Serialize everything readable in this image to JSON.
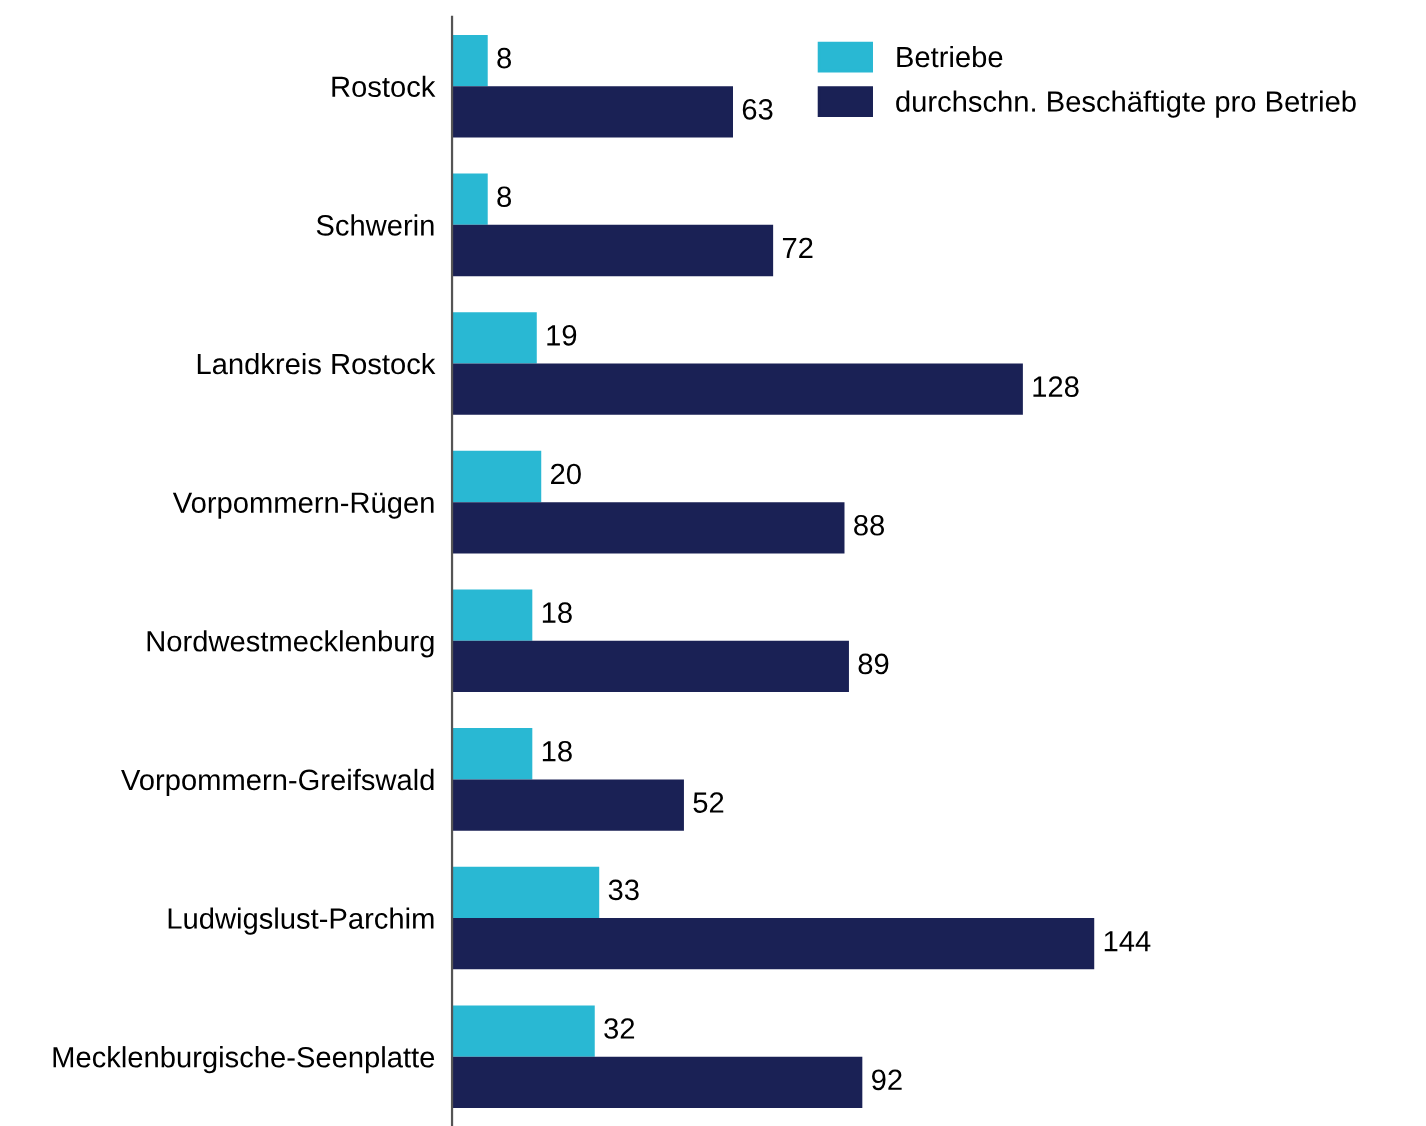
{
  "chart_data": {
    "type": "bar",
    "orientation": "horizontal",
    "data_labels": true,
    "legend": "top right",
    "grid": false,
    "categories": [
      "Rostock",
      "Schwerin",
      "Landkreis Rostock",
      "Vorpommern-Rügen",
      "Nordwestmecklenburg",
      "Vorpommern-Greifswald",
      "Ludwigslust-Parchim",
      "Mecklenburgische-Seenplatte"
    ],
    "series": [
      {
        "name": "Betriebe",
        "color": "#29b8d3",
        "values": [
          8,
          8,
          19,
          20,
          18,
          18,
          33,
          32
        ]
      },
      {
        "name": "durchschn. Beschäftigte pro Betrieb",
        "color": "#1a2155",
        "values": [
          63,
          72,
          128,
          88,
          89,
          52,
          144,
          92
        ]
      }
    ]
  }
}
